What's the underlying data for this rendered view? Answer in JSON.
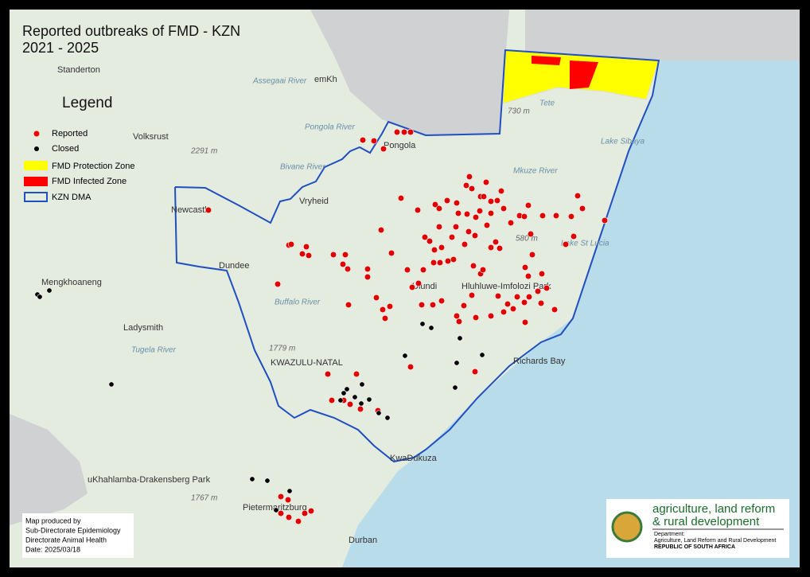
{
  "header": {
    "title_line1": "Reported outbreaks of FMD - KZN",
    "title_line2": "2021 - 2025"
  },
  "legend": {
    "title": "Legend",
    "items": [
      "Reported",
      "Closed",
      "FMD Protection Zone",
      "FMD Infected Zone",
      "KZN DMA"
    ]
  },
  "places": [
    "Standerton",
    "emKh",
    "Volksrust",
    "Newcastle",
    "Vryheid",
    "Pongola",
    "Dundee",
    "Mengkhoaneng",
    "Ladysmith",
    "Ulundi",
    "Hluhluwe-Imfolozi Park",
    "Richards Bay",
    "KWAZULU-NATAL",
    "KwaDukuza",
    "Pietermaritzburg",
    "Durban",
    "Lake Sibaya",
    "Lake St Lucia",
    "uKhahlamba-Drakensberg Park",
    "Tete"
  ],
  "features": [
    "Assegaai River",
    "Pongola River",
    "Bivane River",
    "Mkuze River",
    "Buffalo River",
    "Tugela River",
    "2291 m",
    "1779 m",
    "1767 m",
    "730 m",
    "580 m"
  ],
  "footer": {
    "credits": [
      "Map produced by",
      "Sub-Directorate Epidemiology",
      "Directorate Animal Health",
      "Date: 2025/03/18"
    ]
  },
  "logo": {
    "name_line1": "agriculture, land reform",
    "name_line2": "& rural development",
    "department": "Department:",
    "department_name": "Agriculture, Land Reform and Rural Development",
    "country": "REPUBLIC OF SOUTH AFRICA"
  }
}
